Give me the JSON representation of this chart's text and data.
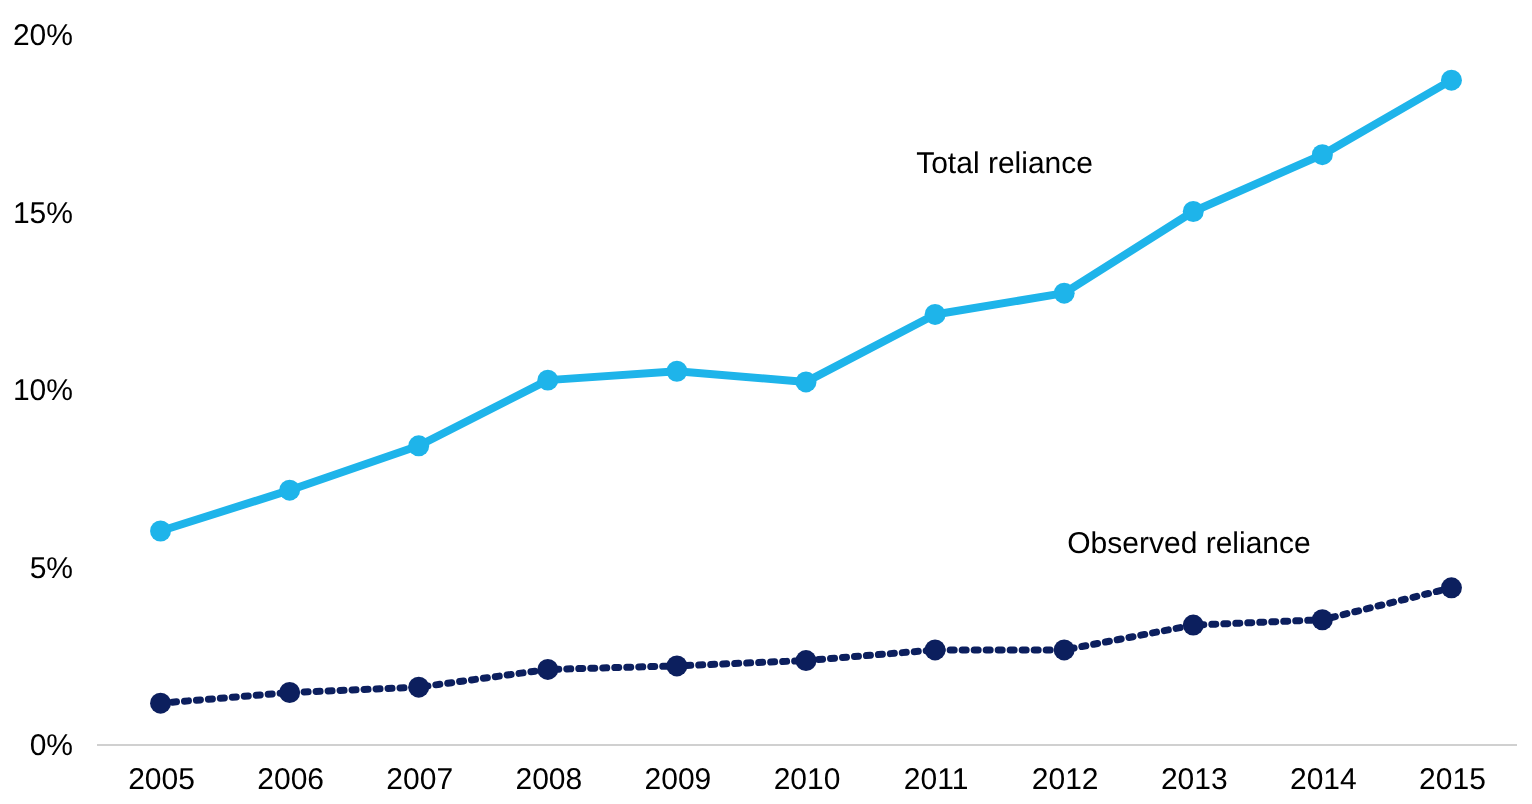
{
  "chart_data": {
    "type": "line",
    "categories": [
      "2005",
      "2006",
      "2007",
      "2008",
      "2009",
      "2010",
      "2011",
      "2012",
      "2013",
      "2014",
      "2015"
    ],
    "series": [
      {
        "name": "Total reliance",
        "color": "#1eb4ea",
        "line_style": "solid",
        "values": [
          6.0,
          7.15,
          8.4,
          10.25,
          10.5,
          10.2,
          12.1,
          12.7,
          15.0,
          16.6,
          18.7
        ]
      },
      {
        "name": "Observed reliance",
        "color": "#0c1f5e",
        "line_style": "dotted",
        "values": [
          1.15,
          1.45,
          1.6,
          2.1,
          2.2,
          2.35,
          2.65,
          2.65,
          3.35,
          3.5,
          4.4
        ]
      }
    ],
    "ylim": [
      0,
      20
    ],
    "yticks": [
      {
        "value": 0,
        "label": "0%"
      },
      {
        "value": 5,
        "label": "5%"
      },
      {
        "value": 10,
        "label": "10%"
      },
      {
        "value": 15,
        "label": "15%"
      },
      {
        "value": 20,
        "label": "20%"
      }
    ],
    "marker": "circle"
  }
}
